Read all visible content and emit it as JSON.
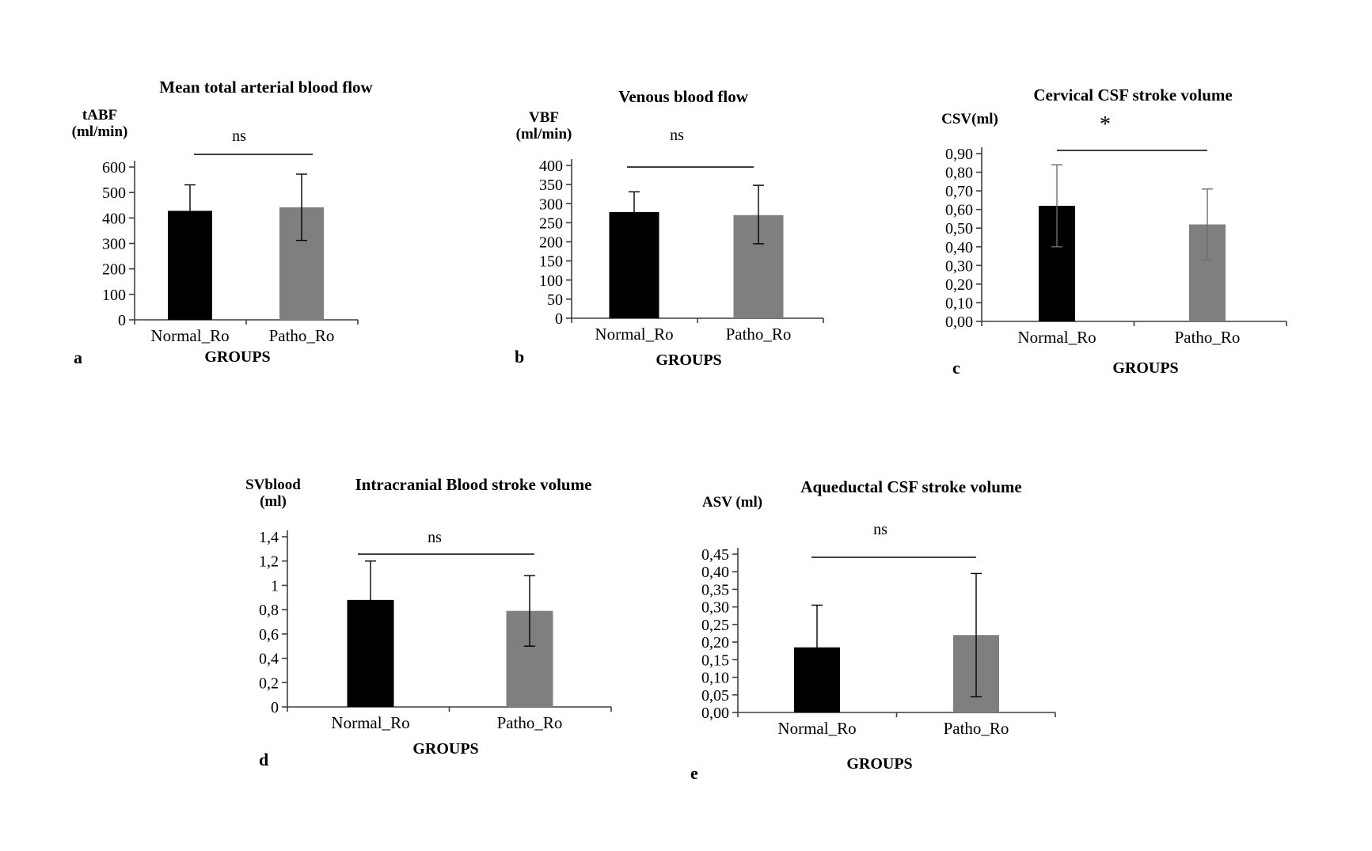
{
  "figure": {
    "background": "#ffffff",
    "groups": [
      "Normal_Ro",
      "Patho_Ro"
    ],
    "bar_color_normal": "#000000",
    "bar_color_patho": "#7f7f7f"
  },
  "chart_data": [
    {
      "panel_letter": "a",
      "type": "bar",
      "title": "Mean total arterial blood flow",
      "ylabel": "tABF (ml/min)",
      "ylabel_lines": [
        "tABF",
        "(ml/min)"
      ],
      "xlabel": "GROUPS",
      "significance": "ns",
      "categories": [
        "Normal_Ro",
        "Patho_Ro"
      ],
      "values": [
        428,
        442
      ],
      "errors_plus": [
        102,
        130
      ],
      "errors_minus": [
        102,
        130
      ],
      "ylim": [
        0,
        600
      ],
      "ytick_labels": [
        "0",
        "100",
        "200",
        "300",
        "400",
        "500",
        "600"
      ],
      "bar_colors": [
        "#000000",
        "#7f7f7f"
      ],
      "error_color": "#000000",
      "grid": false,
      "legend_position": "none"
    },
    {
      "panel_letter": "b",
      "type": "bar",
      "title": "Venous blood flow",
      "ylabel": "VBF (ml/min)",
      "ylabel_lines": [
        "VBF",
        "(ml/min)"
      ],
      "xlabel": "GROUPS",
      "significance": "ns",
      "categories": [
        "Normal_Ro",
        "Patho_Ro"
      ],
      "values": [
        278,
        270
      ],
      "errors_plus": [
        53,
        78
      ],
      "errors_minus": [
        53,
        75
      ],
      "ylim": [
        0,
        400
      ],
      "ytick_labels": [
        "0",
        "50",
        "100",
        "150",
        "200",
        "250",
        "300",
        "350",
        "400"
      ],
      "bar_colors": [
        "#000000",
        "#7f7f7f"
      ],
      "error_color": "#000000",
      "grid": false,
      "legend_position": "none"
    },
    {
      "panel_letter": "c",
      "type": "bar",
      "title": "Cervical CSF stroke volume",
      "ylabel": "CSV(ml)",
      "ylabel_lines": [
        "CSV(ml)"
      ],
      "xlabel": "GROUPS",
      "significance": "*",
      "categories": [
        "Normal_Ro",
        "Patho_Ro"
      ],
      "values": [
        0.62,
        0.52
      ],
      "errors_plus": [
        0.22,
        0.19
      ],
      "errors_minus": [
        0.22,
        0.19
      ],
      "ylim": [
        0,
        0.9
      ],
      "ytick_labels": [
        "0,00",
        "0,10",
        "0,20",
        "0,30",
        "0,40",
        "0,50",
        "0,60",
        "0,70",
        "0,80",
        "0,90"
      ],
      "bar_colors": [
        "#000000",
        "#7f7f7f"
      ],
      "error_color": "#6e6e6e",
      "grid": false,
      "legend_position": "none"
    },
    {
      "panel_letter": "d",
      "type": "bar",
      "title": "Intracranial Blood stroke volume",
      "ylabel": "SVblood (ml)",
      "ylabel_lines": [
        "SVblood",
        "(ml)"
      ],
      "xlabel": "GROUPS",
      "significance": "ns",
      "categories": [
        "Normal_Ro",
        "Patho_Ro"
      ],
      "values": [
        0.88,
        0.79
      ],
      "errors_plus": [
        0.32,
        0.29
      ],
      "errors_minus": [
        0.32,
        0.29
      ],
      "ylim": [
        0,
        1.4
      ],
      "ytick_labels": [
        "0",
        "0,2",
        "0,4",
        "0,6",
        "0,8",
        "1",
        "1,2",
        "1,4"
      ],
      "bar_colors": [
        "#000000",
        "#7f7f7f"
      ],
      "error_color": "#000000",
      "grid": false,
      "legend_position": "none"
    },
    {
      "panel_letter": "e",
      "type": "bar",
      "title": "Aqueductal CSF stroke volume",
      "ylabel": "ASV (ml)",
      "ylabel_lines": [
        "ASV (ml)"
      ],
      "xlabel": "GROUPS",
      "significance": "ns",
      "categories": [
        "Normal_Ro",
        "Patho_Ro"
      ],
      "values": [
        0.185,
        0.22
      ],
      "errors_plus": [
        0.12,
        0.175
      ],
      "errors_minus": [
        0.12,
        0.175
      ],
      "ylim": [
        0,
        0.45
      ],
      "ytick_labels": [
        "0,00",
        "0,05",
        "0,10",
        "0,15",
        "0,20",
        "0,25",
        "0,30",
        "0,35",
        "0,40",
        "0,45"
      ],
      "bar_colors": [
        "#000000",
        "#7f7f7f"
      ],
      "error_color": "#000000",
      "grid": false,
      "legend_position": "none"
    }
  ]
}
